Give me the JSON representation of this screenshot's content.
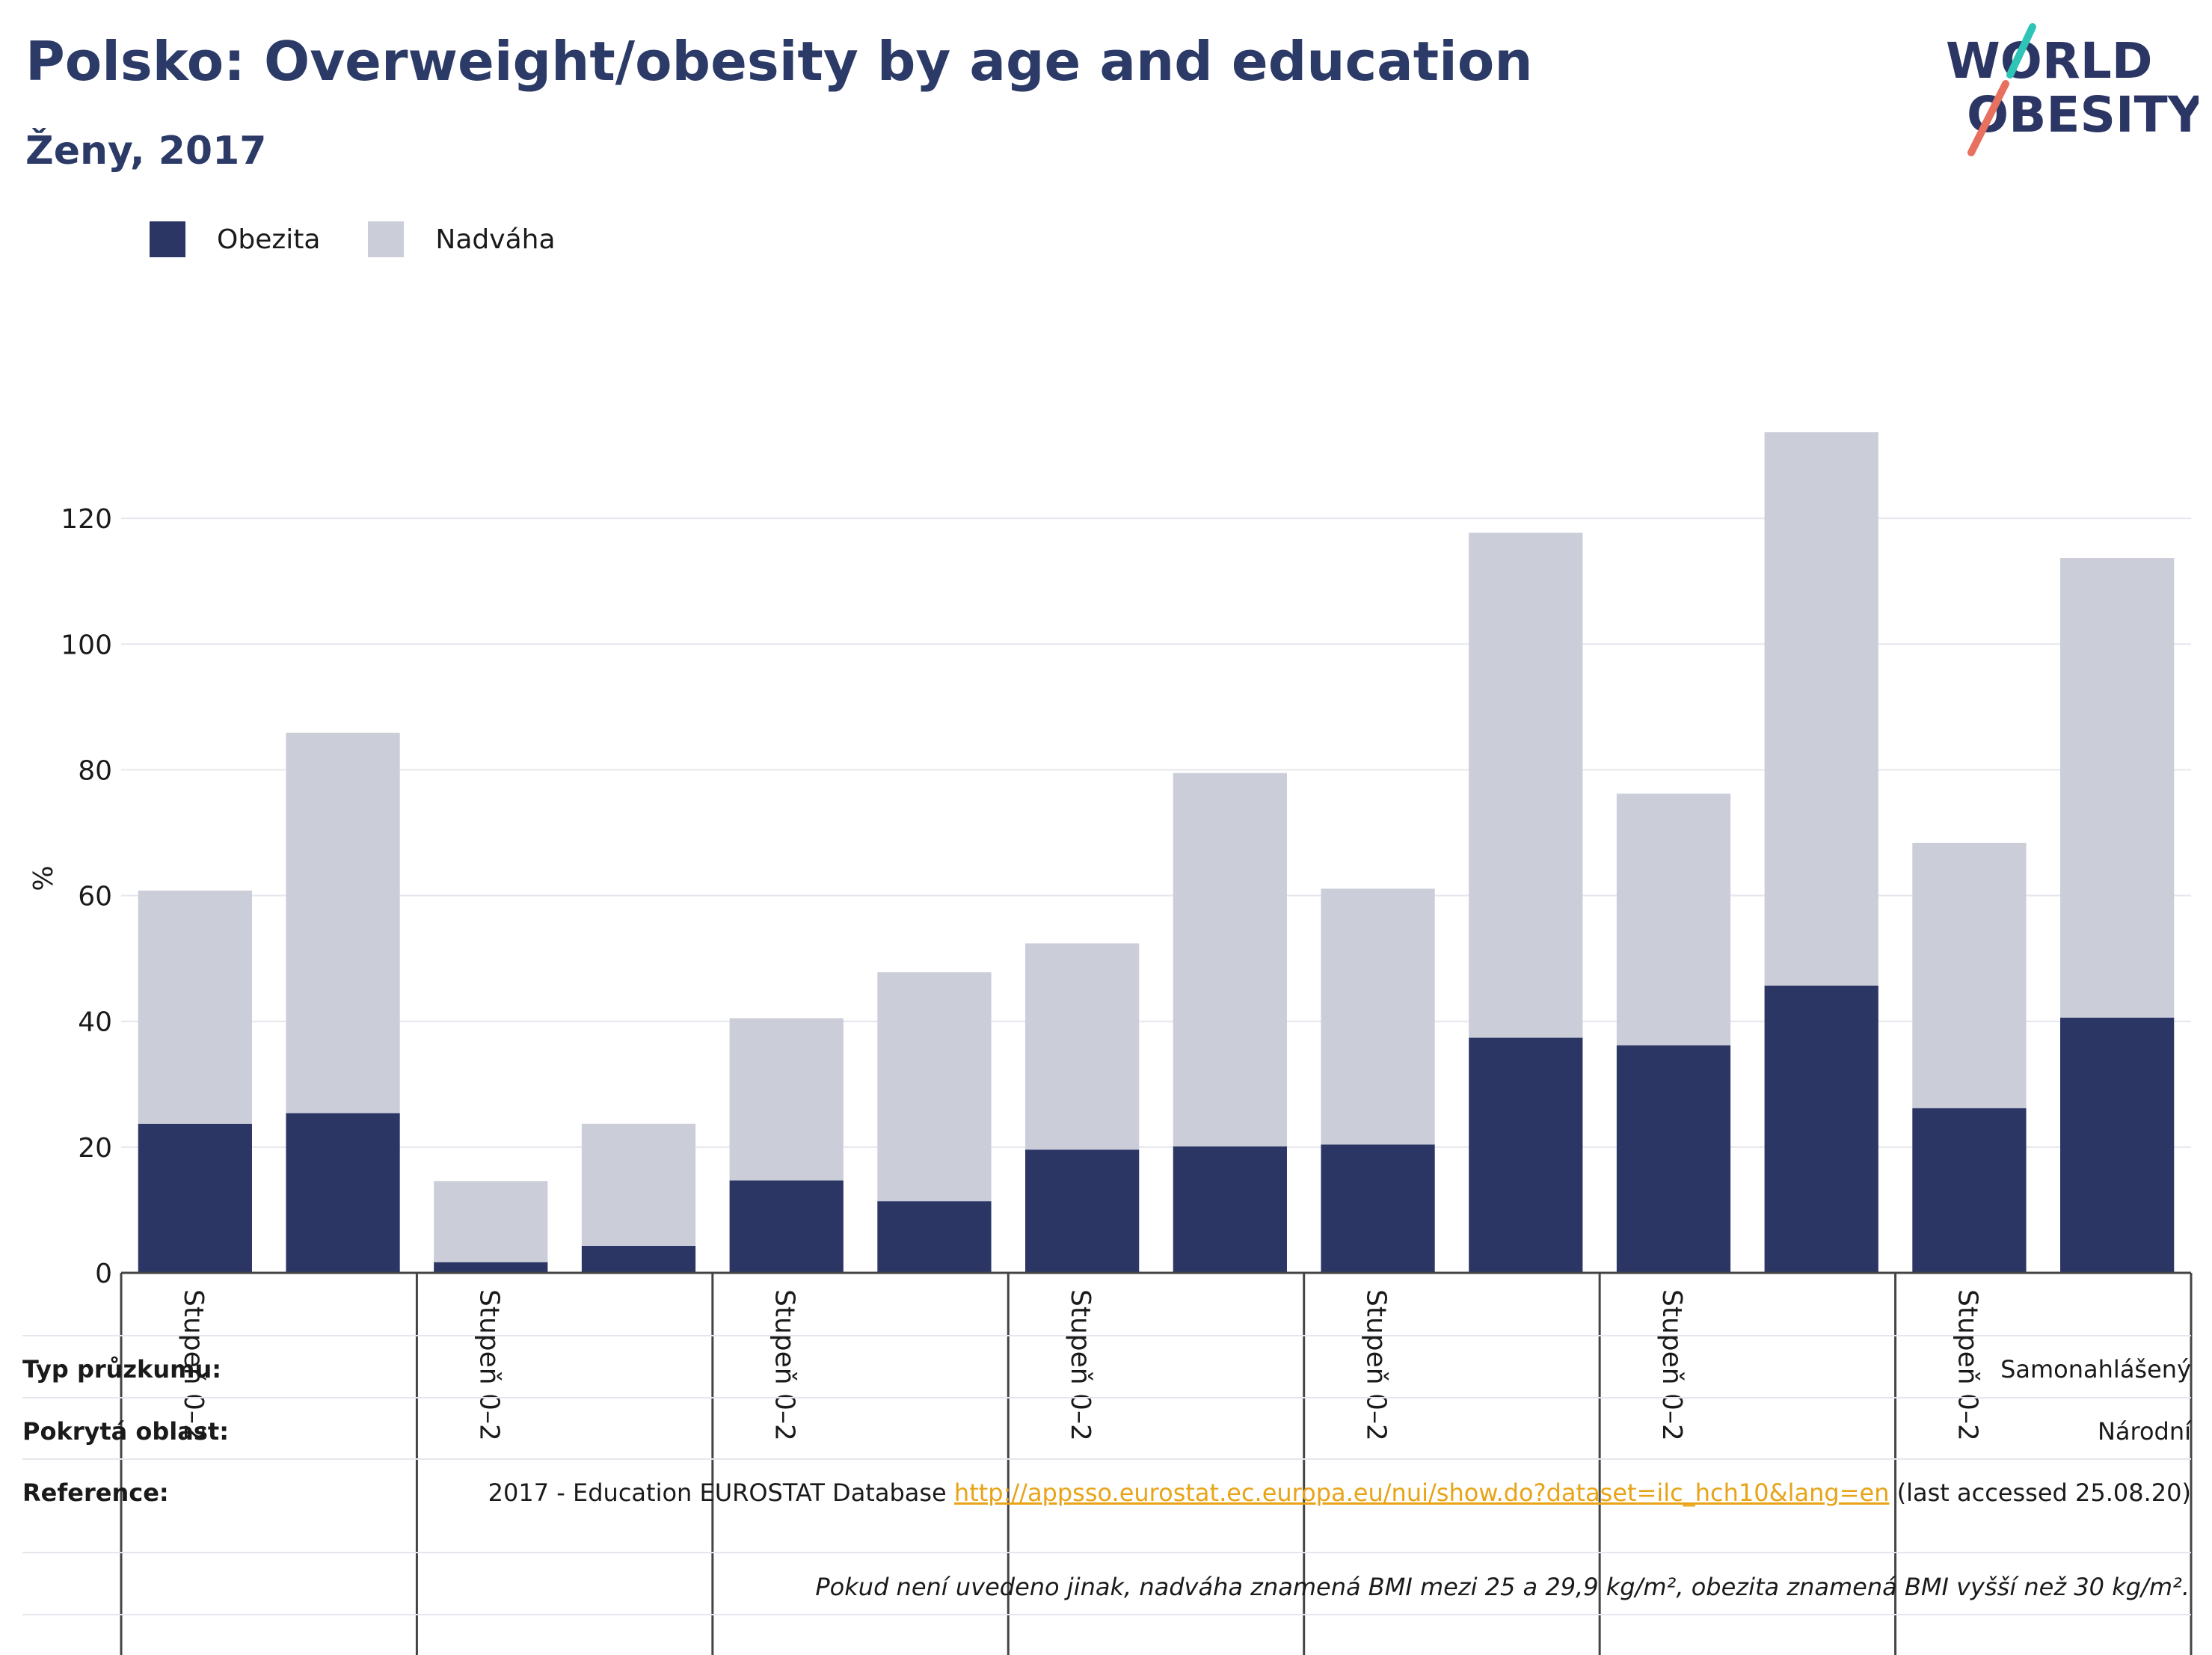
{
  "header": {
    "title": "Polsko: Overweight/obesity by age and education",
    "subtitle": "Ženy, 2017"
  },
  "logo": {
    "line1": "WORLD",
    "line2": "OBESITY"
  },
  "legend": [
    {
      "label": "Obezita",
      "color": "#2b3665"
    },
    {
      "label": "Nadváha",
      "color": "#cbcdd9"
    }
  ],
  "chart_data": {
    "type": "bar",
    "stacked": true,
    "ylabel": "%",
    "ylim": [
      0,
      135
    ],
    "yticks": [
      0,
      20,
      40,
      60,
      80,
      100,
      120
    ],
    "grid": true,
    "legend_position": "top-left",
    "group_labels": [
      "Stupeň 0–2",
      "Stupeň 0–2",
      "Stupeň 0–2",
      "Stupeň 0–2",
      "Stupeň 0–2",
      "Stupeň 0–2",
      "Stupeň 0–2"
    ],
    "series": [
      {
        "name": "Obezita",
        "color": "#2b3665",
        "values": [
          23.7,
          25.4,
          1.7,
          4.3,
          14.7,
          11.4,
          19.6,
          20.1,
          20.4,
          37.4,
          36.2,
          45.7,
          26.2,
          40.6
        ]
      },
      {
        "name": "Nadváha",
        "color": "#cbcdd9",
        "values": [
          37.1,
          60.5,
          12.9,
          19.4,
          25.8,
          36.4,
          32.8,
          59.4,
          40.7,
          80.3,
          40.0,
          88.0,
          42.2,
          73.1
        ]
      }
    ]
  },
  "footer": {
    "survey_type_label": "Typ průzkumu:",
    "survey_type_value": "Samonahlášený",
    "area_label": "Pokrytá oblast:",
    "area_value": "Národní",
    "reference_label": "Reference:",
    "reference_prefix": "2017 - Education EUROSTAT Database",
    "reference_link": "http://appsso.eurostat.ec.europa.eu/nui/show.do?dataset=ilc_hch10&lang=en",
    "reference_suffix": "(last accessed 25.08.20)",
    "note": "Pokud není uvedeno jinak, nadváha znamená BMI mezi 25 a 29,9 kg/m², obezita znamená BMI vyšší než 30 kg/m²."
  }
}
